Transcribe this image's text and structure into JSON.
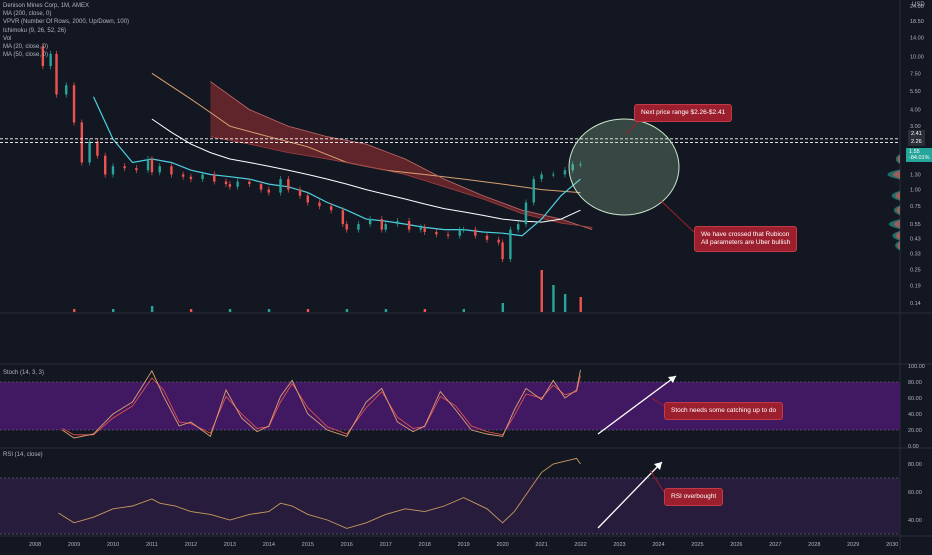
{
  "legend": {
    "symbol": "Denison Mines Corp, 1M, AMEX",
    "indicators": [
      "MA (200, close, 0)",
      "VPVR (Number Of Rows, 2000, Up/Down, 100)",
      "Ichimoku (9, 26, 52, 26)",
      "Vol",
      "MA (20, close, 0)",
      "MA (50, close, 0)"
    ]
  },
  "currency": "USD",
  "price_tags": {
    "range_high": "2.41",
    "range_low": "2.26",
    "last": "1.55",
    "change": "-84.01%"
  },
  "colors": {
    "background": "#131722",
    "up": "#26a69a",
    "down": "#ef5350",
    "ma20": "#4dd0e1",
    "ma50": "#ffffff",
    "ma200": "#d8a070",
    "cloud_bear": "#7b2b2e",
    "stoch_band": "#4a1a6e",
    "callout": "#9c1f2e"
  },
  "annotations": {
    "price_range": "Next price range $2.26-$2.41",
    "rubicon_line1": "We have crossed that Rubicon",
    "rubicon_line2": "All parameters are Uber bullish",
    "stoch": "Stoch needs some catching up to do",
    "rsi": "RSI overbought"
  },
  "chart_data": [
    {
      "type": "line",
      "title": "Denison Mines Corp, 1M, AMEX",
      "scale": "log",
      "ylim": [
        0.12,
        26.7
      ],
      "y_ticks": [
        "0.14",
        "0.19",
        "0.25",
        "0.33",
        "0.43",
        "0.55",
        "0.75",
        "1.00",
        "1.30",
        "1.70",
        "2.20",
        "3.00",
        "4.00",
        "5.50",
        "7.50",
        "10.00",
        "14.00",
        "18.50",
        "24.00"
      ],
      "x_ticks": [
        "2008",
        "2009",
        "2010",
        "2011",
        "2012",
        "2013",
        "2014",
        "2015",
        "2016",
        "2017",
        "2018",
        "2019",
        "2020",
        "2021",
        "2022",
        "2023",
        "2024",
        "2025",
        "2026",
        "2027",
        "2028",
        "2029",
        "2030"
      ],
      "xlim": [
        2007.1,
        2030.2
      ],
      "series": [
        {
          "name": "Close",
          "x": [
            2008.0,
            2008.2,
            2008.4,
            2008.55,
            2008.8,
            2009.0,
            2009.2,
            2009.4,
            2009.6,
            2009.8,
            2010.0,
            2010.3,
            2010.6,
            2010.9,
            2011.0,
            2011.2,
            2011.5,
            2011.8,
            2012.0,
            2012.3,
            2012.6,
            2012.9,
            2013.0,
            2013.2,
            2013.5,
            2013.8,
            2014.0,
            2014.3,
            2014.5,
            2014.8,
            2015.0,
            2015.3,
            2015.6,
            2015.9,
            2016.0,
            2016.3,
            2016.6,
            2016.9,
            2017.0,
            2017.3,
            2017.6,
            2017.9,
            2018.0,
            2018.3,
            2018.6,
            2018.9,
            2019.0,
            2019.3,
            2019.6,
            2019.9,
            2020.0,
            2020.2,
            2020.4,
            2020.6,
            2020.8,
            2021.0,
            2021.3,
            2021.6,
            2021.8,
            2022.0
          ],
          "values": [
            12.0,
            8.5,
            10.5,
            5.2,
            6.1,
            3.2,
            1.6,
            2.3,
            1.8,
            1.3,
            1.5,
            1.45,
            1.4,
            1.7,
            1.35,
            1.5,
            1.3,
            1.25,
            1.2,
            1.3,
            1.15,
            1.1,
            1.05,
            1.15,
            1.1,
            1.0,
            0.95,
            1.2,
            1.0,
            0.9,
            0.8,
            0.75,
            0.7,
            0.55,
            0.5,
            0.55,
            0.6,
            0.5,
            0.55,
            0.58,
            0.5,
            0.52,
            0.48,
            0.46,
            0.45,
            0.5,
            0.5,
            0.45,
            0.42,
            0.4,
            0.3,
            0.5,
            0.55,
            0.8,
            1.2,
            1.3,
            1.3,
            1.4,
            1.55,
            1.55
          ]
        },
        {
          "name": "MA (20, close, 0)",
          "x": [
            2009.5,
            2010.0,
            2010.5,
            2011.0,
            2011.5,
            2012.0,
            2012.5,
            2013.0,
            2013.5,
            2014.0,
            2014.5,
            2015.0,
            2015.5,
            2016.0,
            2016.5,
            2017.0,
            2017.5,
            2018.0,
            2018.5,
            2019.0,
            2019.5,
            2020.0,
            2020.5,
            2021.0,
            2021.5,
            2022.0
          ],
          "values": [
            5.0,
            2.4,
            1.6,
            1.7,
            1.6,
            1.4,
            1.3,
            1.25,
            1.2,
            1.1,
            1.05,
            0.95,
            0.8,
            0.7,
            0.6,
            0.58,
            0.55,
            0.52,
            0.5,
            0.5,
            0.48,
            0.47,
            0.45,
            0.6,
            0.9,
            1.2
          ]
        },
        {
          "name": "MA (50, close, 0)",
          "x": [
            2011.0,
            2011.5,
            2012.0,
            2012.5,
            2013.0,
            2013.5,
            2014.0,
            2014.5,
            2015.0,
            2015.5,
            2016.0,
            2016.5,
            2017.0,
            2017.5,
            2018.0,
            2018.5,
            2019.0,
            2019.5,
            2020.0,
            2020.5,
            2021.0,
            2021.5,
            2022.0
          ],
          "values": [
            3.4,
            2.7,
            2.2,
            1.9,
            1.7,
            1.6,
            1.5,
            1.4,
            1.3,
            1.2,
            1.1,
            1.0,
            0.92,
            0.85,
            0.78,
            0.72,
            0.68,
            0.64,
            0.6,
            0.58,
            0.57,
            0.6,
            0.7
          ]
        },
        {
          "name": "MA (200, close, 0)",
          "x": [
            2011.0,
            2011.5,
            2012.0,
            2012.5,
            2013.0,
            2014.0,
            2015.0,
            2016.0,
            2017.0,
            2018.0,
            2019.0,
            2020.0,
            2021.0,
            2022.0
          ],
          "values": [
            7.5,
            6.0,
            4.8,
            3.8,
            3.0,
            2.5,
            2.1,
            1.6,
            1.4,
            1.3,
            1.2,
            1.1,
            1.0,
            0.95
          ]
        },
        {
          "name": "Ichimoku Span A",
          "x": [
            2012.5,
            2013.5,
            2014.5,
            2015.5,
            2016.5,
            2017.5,
            2018.5,
            2019.5,
            2020.5,
            2021.5,
            2022.3
          ],
          "values": [
            6.5,
            4.0,
            3.0,
            2.5,
            2.2,
            1.7,
            1.2,
            0.9,
            0.7,
            0.6,
            0.5
          ]
        },
        {
          "name": "Ichimoku Span B",
          "x": [
            2012.5,
            2013.5,
            2014.5,
            2015.5,
            2016.5,
            2017.5,
            2018.5,
            2019.5,
            2020.5,
            2021.5,
            2022.3
          ],
          "values": [
            2.5,
            2.2,
            1.9,
            1.7,
            1.5,
            1.3,
            1.05,
            0.85,
            0.66,
            0.56,
            0.52
          ]
        }
      ]
    },
    {
      "type": "bar",
      "title": "Vol",
      "x": [
        2009,
        2010,
        2011,
        2012,
        2013,
        2014,
        2015,
        2016,
        2017,
        2018,
        2019,
        2020,
        2021,
        2021.3,
        2021.6,
        2022
      ],
      "values": [
        1,
        1,
        2,
        1,
        1,
        1,
        1,
        1,
        1,
        1,
        1,
        3,
        14,
        9,
        6,
        5
      ]
    },
    {
      "type": "line",
      "title": "Stoch (14, 3, 3)",
      "ylim": [
        0,
        100
      ],
      "y_ticks": [
        "0.00",
        "20.00",
        "40.00",
        "60.00",
        "80.00",
        "100.00"
      ],
      "band": [
        20,
        80
      ],
      "series": [
        {
          "name": "%K",
          "x": [
            2008.7,
            2009.0,
            2009.5,
            2010.0,
            2010.5,
            2011.0,
            2011.3,
            2011.7,
            2012.0,
            2012.5,
            2012.9,
            2013.3,
            2013.7,
            2014.0,
            2014.3,
            2014.6,
            2015.0,
            2015.5,
            2016.0,
            2016.5,
            2016.9,
            2017.3,
            2017.7,
            2018.0,
            2018.4,
            2018.8,
            2019.2,
            2019.6,
            2020.0,
            2020.3,
            2020.6,
            2021.0,
            2021.3,
            2021.6,
            2021.9,
            2022.0
          ],
          "values": [
            20,
            10,
            15,
            40,
            55,
            94,
            62,
            25,
            30,
            12,
            70,
            35,
            18,
            25,
            62,
            82,
            40,
            20,
            12,
            55,
            72,
            30,
            18,
            25,
            68,
            45,
            20,
            15,
            12,
            45,
            72,
            58,
            82,
            60,
            70,
            95
          ]
        },
        {
          "name": "%D",
          "x": [
            2008.7,
            2009.0,
            2009.5,
            2010.0,
            2010.5,
            2011.0,
            2011.3,
            2011.7,
            2012.0,
            2012.5,
            2012.9,
            2013.3,
            2013.7,
            2014.0,
            2014.3,
            2014.6,
            2015.0,
            2015.5,
            2016.0,
            2016.5,
            2016.9,
            2017.3,
            2017.7,
            2018.0,
            2018.4,
            2018.8,
            2019.2,
            2019.6,
            2020.0,
            2020.3,
            2020.6,
            2021.0,
            2021.3,
            2021.6,
            2021.9,
            2022.0
          ],
          "values": [
            22,
            14,
            14,
            35,
            50,
            85,
            70,
            30,
            28,
            16,
            62,
            40,
            22,
            24,
            55,
            78,
            48,
            24,
            15,
            48,
            68,
            36,
            22,
            24,
            62,
            50,
            25,
            18,
            14,
            38,
            65,
            60,
            76,
            64,
            68,
            88
          ]
        }
      ]
    },
    {
      "type": "line",
      "title": "RSI (14, close)",
      "ylim": [
        30,
        90
      ],
      "y_ticks": [
        "40.00",
        "60.00",
        "80.00"
      ],
      "band": [
        30,
        70
      ],
      "series": [
        {
          "name": "RSI",
          "x": [
            2008.6,
            2009.0,
            2009.5,
            2010.0,
            2010.5,
            2011.0,
            2011.2,
            2011.6,
            2012.0,
            2012.5,
            2013.0,
            2013.5,
            2014.0,
            2014.3,
            2014.6,
            2015.0,
            2015.5,
            2016.0,
            2016.5,
            2017.0,
            2017.5,
            2018.0,
            2018.5,
            2019.0,
            2019.3,
            2019.6,
            2020.0,
            2020.3,
            2020.6,
            2021.0,
            2021.3,
            2021.6,
            2021.9,
            2022.0
          ],
          "values": [
            45,
            38,
            42,
            48,
            50,
            55,
            52,
            50,
            46,
            44,
            40,
            44,
            46,
            52,
            50,
            44,
            40,
            34,
            38,
            44,
            48,
            46,
            50,
            56,
            52,
            48,
            38,
            46,
            58,
            74,
            80,
            82,
            84,
            80
          ]
        }
      ]
    }
  ]
}
